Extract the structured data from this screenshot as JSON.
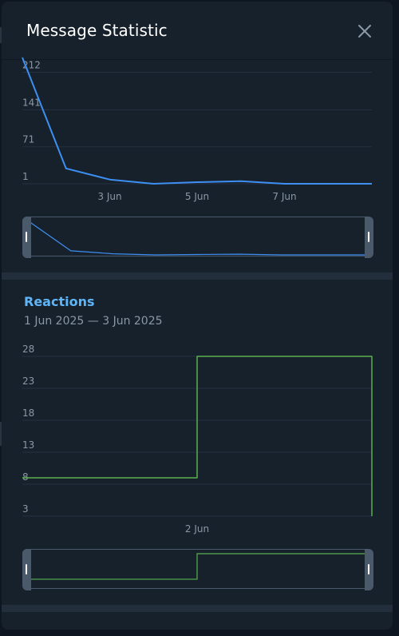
{
  "modal": {
    "title": "Message Statistic",
    "close_icon": "close-icon"
  },
  "colors": {
    "background": "#17212b",
    "messages_line": "#3d8ff2",
    "reactions_line": "#58b04f",
    "accent": "#5eb5f7",
    "tick_text": "#8a97a5"
  },
  "chart_data": [
    {
      "type": "line",
      "title": "",
      "x": [
        "1 Jun",
        "2 Jun",
        "3 Jun",
        "4 Jun",
        "5 Jun",
        "6 Jun",
        "7 Jun",
        "8 Jun",
        "9 Jun"
      ],
      "y_ticks": [
        "212",
        "141",
        "71",
        "1"
      ],
      "x_ticks": [
        "3 Jun",
        "5 Jun",
        "7 Jun"
      ],
      "ylim": [
        1,
        240
      ],
      "series": [
        {
          "values": [
            240,
            30,
            9,
            1,
            4,
            6,
            1,
            1,
            1
          ],
          "color": "#3d8ff2"
        }
      ]
    },
    {
      "type": "line",
      "step": true,
      "title": "Reactions",
      "subtitle": "1 Jun 2025 — 3 Jun 2025",
      "x": [
        "1 Jun",
        "2 Jun",
        "3 Jun"
      ],
      "y_ticks": [
        "28",
        "23",
        "18",
        "13",
        "8",
        "3"
      ],
      "x_ticks": [
        "2 Jun"
      ],
      "ylim": [
        3,
        28
      ],
      "series": [
        {
          "values": [
            9,
            28,
            3
          ],
          "color": "#58b04f"
        }
      ]
    }
  ]
}
